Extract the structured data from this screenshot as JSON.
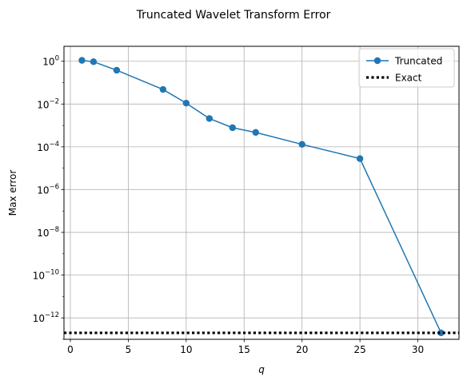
{
  "chart_data": {
    "type": "line",
    "title": "Truncated Wavelet Transform Error",
    "xlabel": "q",
    "ylabel": "Max error",
    "xlim": [
      -0.55,
      33.55
    ],
    "ylim": [
      1e-13,
      5
    ],
    "yscale": "log",
    "xticks": [
      0,
      5,
      10,
      15,
      20,
      25,
      30
    ],
    "yticks": [
      {
        "value": 1,
        "base": "10",
        "exp": "0"
      },
      {
        "value": 0.01,
        "base": "10",
        "exp": "−2"
      },
      {
        "value": 0.0001,
        "base": "10",
        "exp": "−4"
      },
      {
        "value": 1e-06,
        "base": "10",
        "exp": "−6"
      },
      {
        "value": 1e-08,
        "base": "10",
        "exp": "−8"
      },
      {
        "value": 1e-10,
        "base": "10",
        "exp": "−10"
      },
      {
        "value": 1e-12,
        "base": "10",
        "exp": "−12"
      }
    ],
    "grid": true,
    "legend_position": "top-right",
    "series": [
      {
        "name": "Truncated",
        "style": "solid-marker",
        "color": "#1f77b4",
        "x": [
          1,
          2,
          4,
          8,
          10,
          12,
          14,
          16,
          20,
          25,
          32
        ],
        "y": [
          1.1,
          0.95,
          0.38,
          0.048,
          0.011,
          0.0021,
          0.00078,
          0.00047,
          0.00013,
          2.8e-05,
          2e-13
        ]
      },
      {
        "name": "Exact",
        "style": "dotted",
        "color": "#000000",
        "x": [
          -0.55,
          33.55
        ],
        "y": [
          2e-13,
          2e-13
        ]
      }
    ]
  }
}
